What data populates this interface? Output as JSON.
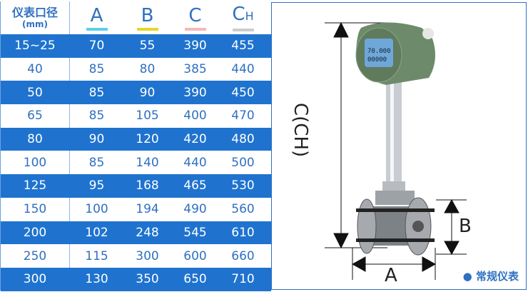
{
  "table": {
    "header": {
      "size_title": "仪表口径",
      "size_unit": "(mm)",
      "cols": [
        {
          "label": "A",
          "sub": "",
          "color": "#5bd0ec"
        },
        {
          "label": "B",
          "sub": "",
          "color": "#e6d629"
        },
        {
          "label": "C",
          "sub": "",
          "color": "#f4b9b9"
        },
        {
          "label": "C",
          "sub": "H",
          "color": "#cccccc"
        }
      ]
    },
    "rows": [
      [
        "15~25",
        "70",
        "55",
        "390",
        "455"
      ],
      [
        "40",
        "85",
        "80",
        "385",
        "440"
      ],
      [
        "50",
        "85",
        "90",
        "390",
        "450"
      ],
      [
        "65",
        "85",
        "105",
        "400",
        "470"
      ],
      [
        "80",
        "90",
        "120",
        "420",
        "480"
      ],
      [
        "100",
        "85",
        "140",
        "440",
        "500"
      ],
      [
        "125",
        "95",
        "168",
        "465",
        "530"
      ],
      [
        "150",
        "100",
        "194",
        "490",
        "560"
      ],
      [
        "200",
        "102",
        "248",
        "545",
        "610"
      ],
      [
        "250",
        "115",
        "300",
        "600",
        "660"
      ],
      [
        "300",
        "130",
        "350",
        "650",
        "710"
      ]
    ],
    "colors": {
      "dark_row": "#1f73cf",
      "text": "#2f70c2"
    }
  },
  "diagram": {
    "label_c": "C(CH)",
    "label_a": "A",
    "label_b": "B",
    "legend": "常规仪表"
  }
}
